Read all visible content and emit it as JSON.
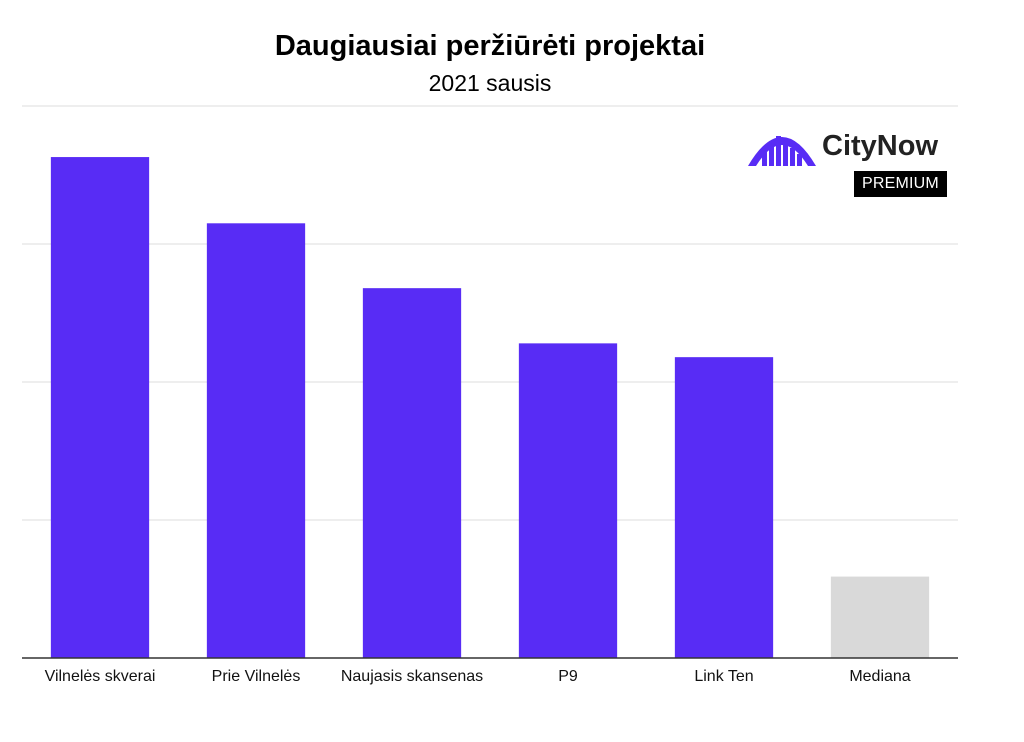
{
  "chart_data": {
    "type": "bar",
    "title": "Daugiausiai peržiūrėti projektai",
    "subtitle": "2021 sausis",
    "categories": [
      "Vilnelės skverai",
      "Prie Vilnelės",
      "Naujasis skansenas",
      "P9",
      "Link Ten",
      "Mediana"
    ],
    "values": [
      3.63,
      3.15,
      2.68,
      2.28,
      2.18,
      0.59
    ],
    "ylim": [
      0,
      4
    ],
    "grid": true,
    "legend": "none",
    "colors": {
      "bar": "#582cf5",
      "median": "#d9d9d9",
      "grid": "#dcdcdc",
      "axis": "#333333"
    }
  },
  "logo": {
    "name": "CityNow",
    "badge": "PREMIUM",
    "color": "#582cf5"
  }
}
